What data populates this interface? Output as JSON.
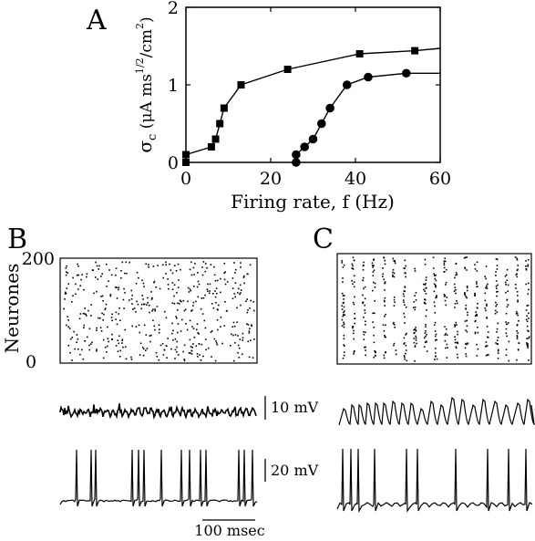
{
  "panels": {
    "a": "A",
    "b": "B",
    "c": "C"
  },
  "chart_data": [
    {
      "type": "line",
      "panel": "A",
      "xlabel": "Firing rate, f (Hz)",
      "ylabel": {
        "main": "σ",
        "sub": "c",
        "units": " (μA ms",
        "exp1": "1/2",
        "mid": "/cm",
        "exp2": "2",
        "close": ")"
      },
      "xlim": [
        0,
        60
      ],
      "ylim": [
        0,
        2
      ],
      "xticks": [
        0,
        20,
        40,
        60
      ],
      "xtick_labels": [
        "0",
        "20",
        "40",
        "60"
      ],
      "yticks": [
        0,
        1,
        2
      ],
      "ytick_labels": [
        "0",
        "1",
        "2"
      ],
      "grid": false,
      "series": [
        {
          "marker": "square",
          "points": [
            [
              0,
              0.0
            ],
            [
              0,
              0.1
            ],
            [
              6,
              0.2
            ],
            [
              7,
              0.3
            ],
            [
              8,
              0.5
            ],
            [
              9,
              0.7
            ],
            [
              13,
              1.0
            ],
            [
              24,
              1.2
            ],
            [
              41,
              1.4
            ],
            [
              54,
              1.44
            ]
          ],
          "line_to": [
            60,
            1.47
          ]
        },
        {
          "marker": "circle",
          "points": [
            [
              26,
              0.0
            ],
            [
              26,
              0.1
            ],
            [
              28,
              0.2
            ],
            [
              30,
              0.3
            ],
            [
              32,
              0.5
            ],
            [
              34,
              0.7
            ],
            [
              38,
              1.0
            ],
            [
              43,
              1.1
            ],
            [
              52,
              1.15
            ]
          ],
          "line_to": [
            60,
            1.15
          ]
        }
      ]
    },
    {
      "type": "scatter",
      "panel": "B",
      "ylabel": "Neurones",
      "ylim": [
        0,
        200
      ],
      "yticks": [
        0,
        200
      ],
      "ytick_labels": [
        "0",
        "200"
      ],
      "pattern": "asynchronous",
      "neurons": 200
    },
    {
      "type": "scatter",
      "panel": "C",
      "pattern": "synchronous",
      "neurons": 200,
      "volleys": 19
    }
  ],
  "scale_bars": {
    "upper_trace": "10 mV",
    "lower_trace": "20 mV",
    "time": "100 msec"
  }
}
